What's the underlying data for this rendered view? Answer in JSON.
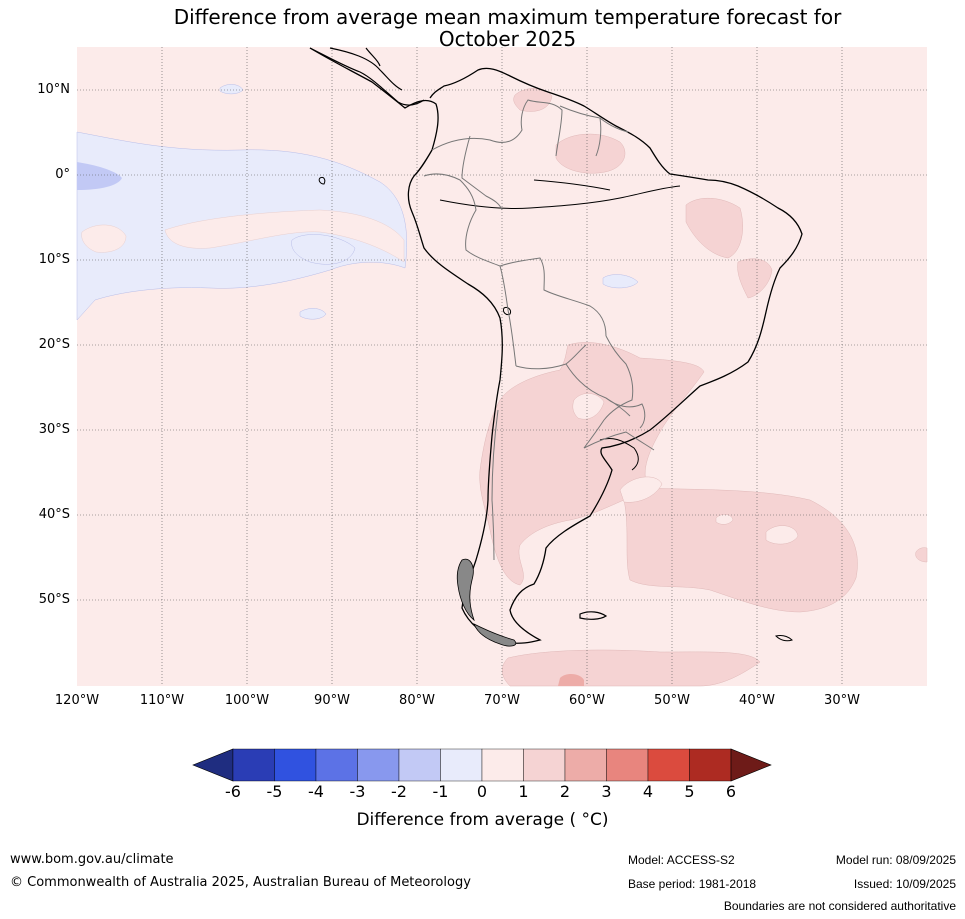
{
  "title_line1": "Difference from average mean maximum temperature forecast for",
  "title_line2": "October 2025",
  "lat_labels": [
    "10°N",
    "0°",
    "10°S",
    "20°S",
    "30°S",
    "40°S",
    "50°S"
  ],
  "lon_labels": [
    "120°W",
    "110°W",
    "100°W",
    "90°W",
    "80°W",
    "70°W",
    "60°W",
    "50°W",
    "40°W",
    "30°W"
  ],
  "colorbar": {
    "ticks": [
      "-6",
      "-5",
      "-4",
      "-3",
      "-2",
      "-1",
      "0",
      "1",
      "2",
      "3",
      "4",
      "5",
      "6"
    ],
    "colors": [
      "#1f2d80",
      "#2a3db5",
      "#3052e0",
      "#5c72e6",
      "#8898ee",
      "#c2c9f5",
      "#e8ebfb",
      "#fcebea",
      "#f5d3d3",
      "#edaca8",
      "#e8857e",
      "#db4b3e",
      "#ad2b22",
      "#6e1b18"
    ],
    "label": "Difference from average ( °C)"
  },
  "footer": {
    "website": "www.bom.gov.au/climate",
    "copyright": "© Commonwealth of Australia 2025, Australian Bureau of Meteorology",
    "model": "Model: ACCESS-S2",
    "base_period": "Base period: 1981-2018",
    "model_run": "Model run: 08/09/2025",
    "issued": "Issued: 10/09/2025",
    "disclaimer": "Boundaries are not considered authoritative"
  }
}
